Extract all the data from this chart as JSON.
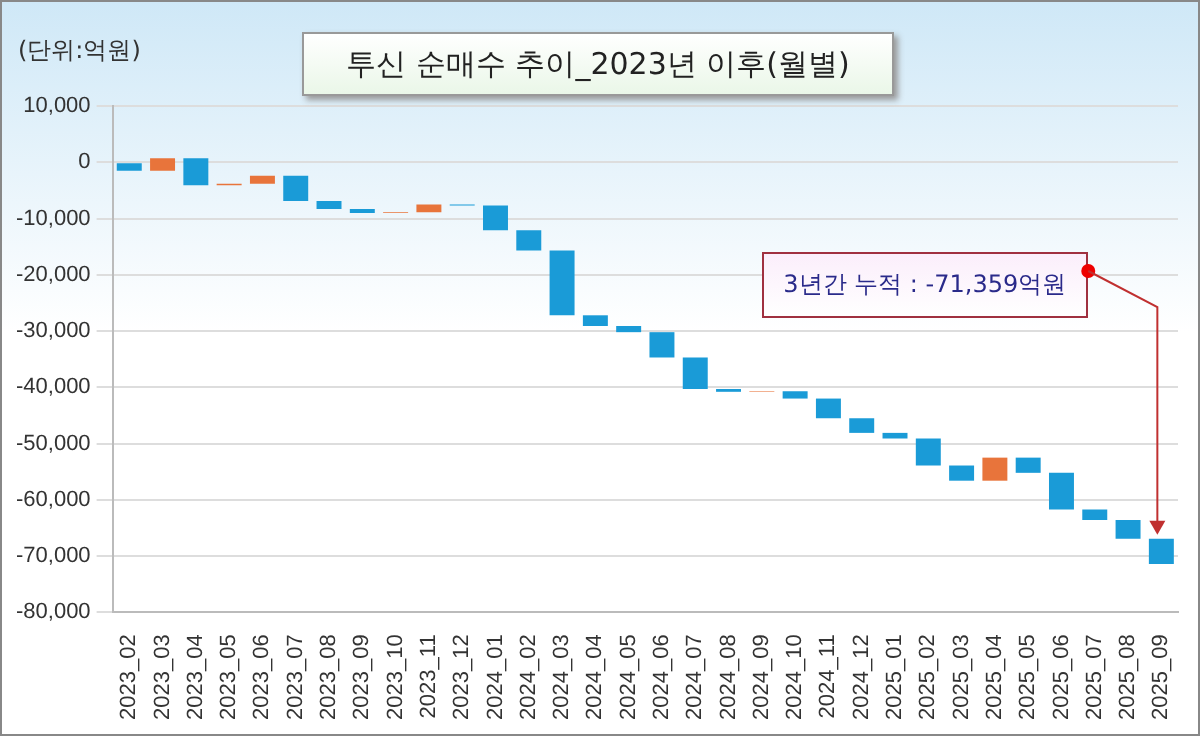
{
  "chart_data": {
    "type": "bar",
    "title": "투신 순매수 추이_2023년 이후(월별)",
    "ylabel": "(단위:억원)",
    "categories": [
      "2023_02",
      "2023_03",
      "2023_04",
      "2023_05",
      "2023_06",
      "2023_07",
      "2023_08",
      "2023_09",
      "2023_10",
      "2023_11",
      "2023_12",
      "2024_01",
      "2024_02",
      "2024_03",
      "2024_04",
      "2024_05",
      "2024_06",
      "2024_07",
      "2024_08",
      "2024_09",
      "2024_10",
      "2024_11",
      "2024_12",
      "2025_01",
      "2025_02",
      "2025_03",
      "2025_04",
      "2025_05",
      "2025_06",
      "2025_07",
      "2025_08",
      "2025_09"
    ],
    "values": [
      -1500,
      2200,
      -4800,
      300,
      1400,
      -4500,
      -1400,
      -700,
      100,
      1400,
      -200,
      -4400,
      -3600,
      -11500,
      -1900,
      -1100,
      -4500,
      -5600,
      -500,
      100,
      -1300,
      -3500,
      -2600,
      -1000,
      -4800,
      -2700,
      4100,
      -2700,
      -6500,
      -1900,
      -3300,
      -4500
    ],
    "base": [
      0,
      -1500,
      700,
      -4100,
      -3800,
      -2400,
      -6900,
      -8300,
      -9000,
      -8900,
      -7500,
      -7700,
      -12100,
      -15700,
      -27200,
      -29100,
      -30200,
      -34700,
      -40300,
      -40800,
      -40700,
      -42000,
      -45500,
      -48100,
      -49100,
      -53900,
      -56600,
      -52500,
      -55200,
      -61700,
      -63600,
      -66900
    ],
    "colors": [
      "#1a9bd7",
      "#e8743b",
      "#1a9bd7",
      "#e8743b",
      "#e8743b",
      "#1a9bd7",
      "#1a9bd7",
      "#1a9bd7",
      "#e8743b",
      "#e8743b",
      "#1a9bd7",
      "#1a9bd7",
      "#1a9bd7",
      "#1a9bd7",
      "#1a9bd7",
      "#1a9bd7",
      "#1a9bd7",
      "#1a9bd7",
      "#1a9bd7",
      "#e8743b",
      "#1a9bd7",
      "#1a9bd7",
      "#1a9bd7",
      "#1a9bd7",
      "#1a9bd7",
      "#1a9bd7",
      "#e8743b",
      "#1a9bd7",
      "#1a9bd7",
      "#1a9bd7",
      "#1a9bd7",
      "#1a9bd7"
    ],
    "ylim": [
      -80000,
      10000
    ],
    "yticks": [
      {
        "value": -80000,
        "label": "-80,000"
      },
      {
        "value": -70000,
        "label": "-70,000"
      },
      {
        "value": -60000,
        "label": "-60,000"
      },
      {
        "value": -50000,
        "label": "-50,000"
      },
      {
        "value": -40000,
        "label": "-40,000"
      },
      {
        "value": -30000,
        "label": "-30,000"
      },
      {
        "value": -20000,
        "label": "-20,000"
      },
      {
        "value": -10000,
        "label": "-10,000"
      },
      0,
      {
        "value": 10000,
        "label": "10,000"
      }
    ],
    "grid": "y",
    "legend": false,
    "annotations": [
      "3년간 누적 : -71,359억원"
    ]
  }
}
